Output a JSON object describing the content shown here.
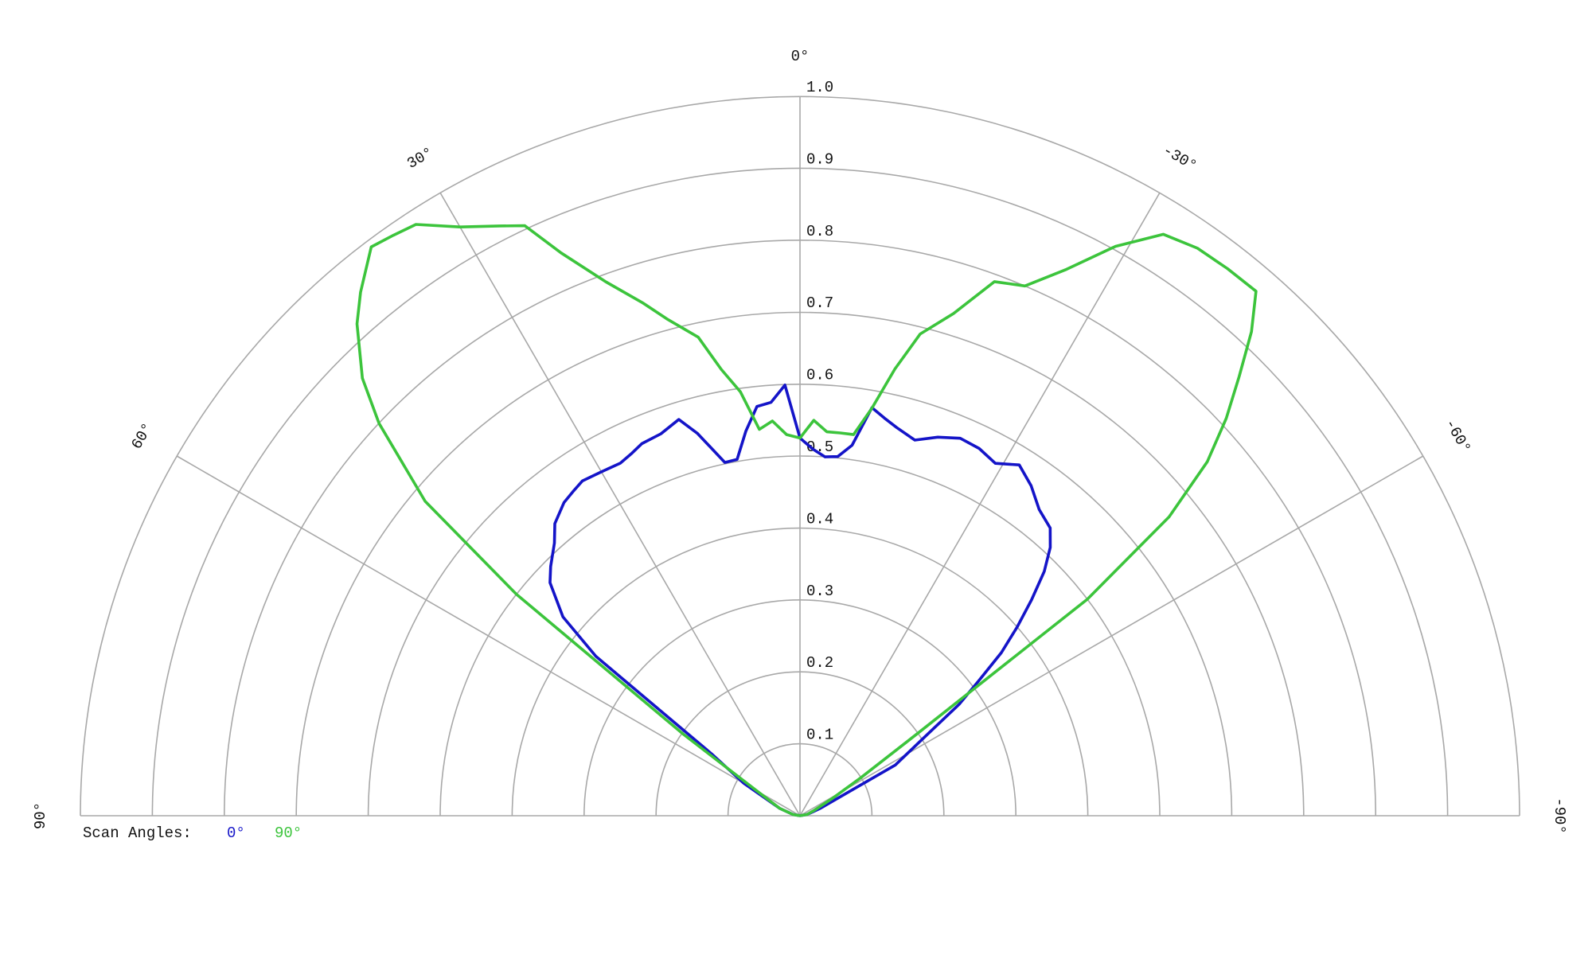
{
  "chart_data": {
    "type": "polar",
    "legend_title": "Scan Angles:",
    "rlim": [
      0,
      1
    ],
    "thetalim": [
      -90,
      90
    ],
    "rticks": [
      0.1,
      0.2,
      0.3,
      0.4,
      0.5,
      0.6,
      0.7,
      0.8,
      0.9,
      {
        "value": 1,
        "label": "1.0"
      }
    ],
    "thetaticks": [
      {
        "value": 90,
        "label": "90°"
      },
      {
        "value": 60,
        "label": "60°"
      },
      {
        "value": 30,
        "label": "30°"
      },
      {
        "value": 0,
        "label": "0°"
      },
      {
        "value": -30,
        "label": "-30°"
      },
      {
        "value": -60,
        "label": "-60°"
      },
      {
        "value": -90,
        "label": "-90°"
      }
    ],
    "grid": true,
    "legend": "bottom-left",
    "x": [
      90,
      80,
      70,
      60,
      55,
      52,
      50,
      47,
      45,
      42,
      40,
      37,
      35,
      33,
      30,
      27,
      25,
      23,
      20,
      17,
      15,
      12,
      10,
      8,
      6,
      4,
      2,
      0,
      -2,
      -4,
      -6,
      -8,
      -10,
      -12,
      -14,
      -17,
      -20,
      -23,
      -26,
      -29,
      -32,
      -35,
      -38,
      -41,
      -43,
      -45,
      -47,
      -49,
      -51,
      -53,
      -55,
      -58,
      -62,
      -70,
      -80,
      -90
    ],
    "series": [
      {
        "name": "0°",
        "color": "#1414c8",
        "values": [
          0,
          0.01,
          0.03,
          0.09,
          0.15,
          0.36,
          0.43,
          0.475,
          0.49,
          0.51,
          0.53,
          0.545,
          0.55,
          0.555,
          0.552,
          0.55,
          0.555,
          0.562,
          0.565,
          0.576,
          0.55,
          0.502,
          0.503,
          0.54,
          0.572,
          0.576,
          0.599,
          0.525,
          0.51,
          0.5,
          0.502,
          0.52,
          0.576,
          0.565,
          0.556,
          0.546,
          0.56,
          0.57,
          0.568,
          0.56,
          0.575,
          0.56,
          0.54,
          0.53,
          0.51,
          0.48,
          0.44,
          0.4,
          0.36,
          0.31,
          0.27,
          0.2,
          0.15,
          0.03,
          0.01,
          0
        ]
      },
      {
        "name": "90°",
        "color": "#3cc43c",
        "values": [
          0,
          0.01,
          0.03,
          0.07,
          0.2,
          0.5,
          0.68,
          0.8,
          0.86,
          0.92,
          0.95,
          0.99,
          0.985,
          0.98,
          0.945,
          0.92,
          0.905,
          0.85,
          0.79,
          0.745,
          0.715,
          0.68,
          0.63,
          0.595,
          0.54,
          0.55,
          0.53,
          0.525,
          0.55,
          0.535,
          0.535,
          0.535,
          0.575,
          0.635,
          0.69,
          0.73,
          0.79,
          0.8,
          0.845,
          0.905,
          0.953,
          0.963,
          0.965,
          0.966,
          0.92,
          0.863,
          0.81,
          0.75,
          0.66,
          0.5,
          0.2,
          0.1,
          0.05,
          0.02,
          0.01,
          0
        ]
      }
    ]
  }
}
